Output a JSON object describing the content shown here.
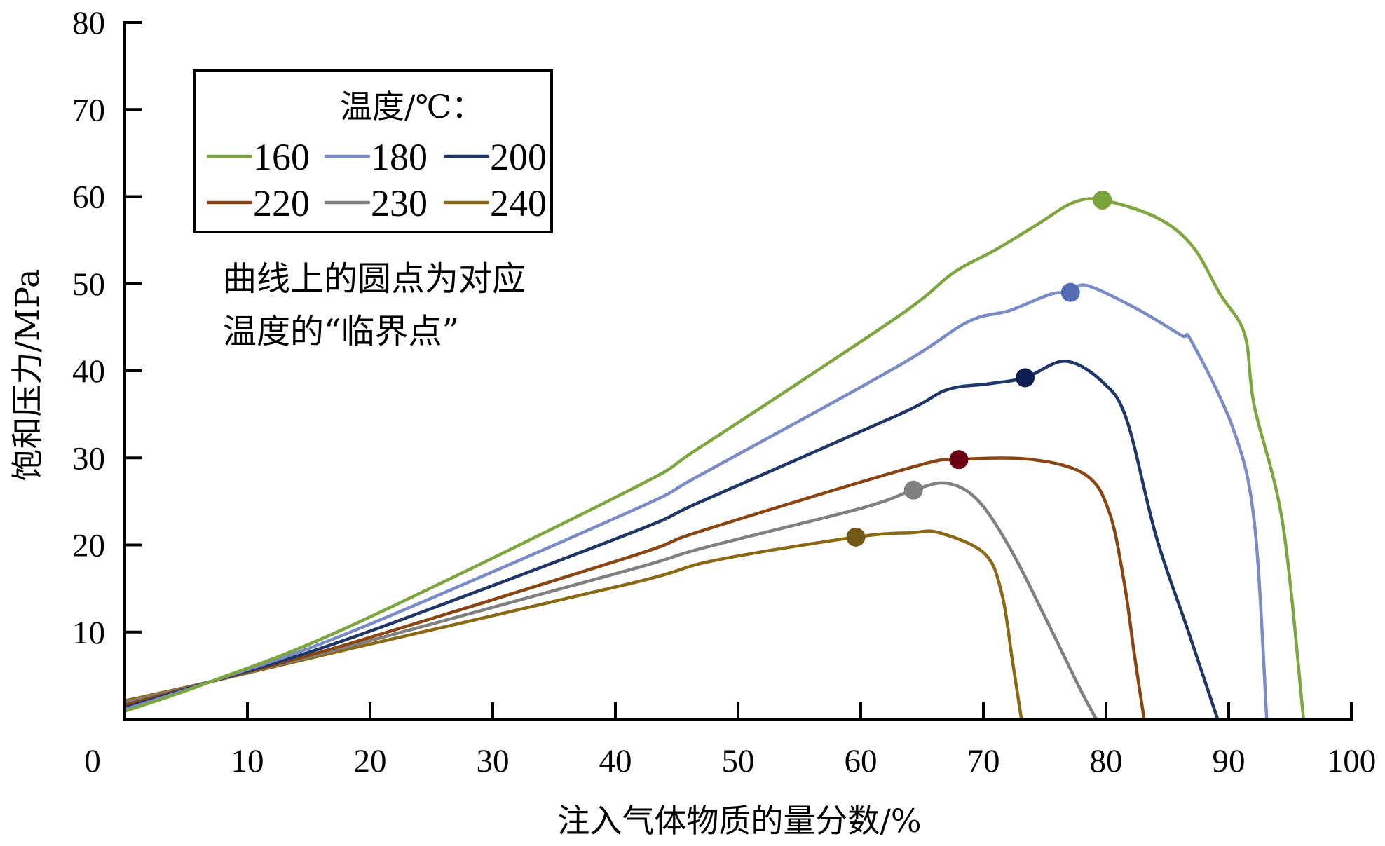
{
  "chart_data": {
    "type": "line",
    "title": "",
    "xlabel": "注入气体物质的量分数/%",
    "ylabel": "饱和压力/MPa",
    "xlim": [
      0,
      100
    ],
    "ylim": [
      0,
      80
    ],
    "xticks": [
      0,
      10,
      20,
      30,
      40,
      50,
      60,
      70,
      80,
      90,
      100
    ],
    "yticks": [
      10,
      20,
      30,
      40,
      50,
      60,
      70,
      80
    ],
    "xtick_labels": [
      "0",
      "10",
      "20",
      "30",
      "40",
      "50",
      "60",
      "70",
      "80",
      "90",
      "100"
    ],
    "ytick_labels": [
      "10",
      "20",
      "30",
      "40",
      "50",
      "60",
      "70",
      "80"
    ],
    "grid": false,
    "legend": {
      "title": "温度/℃：",
      "placement": "top-left",
      "columns": 3
    },
    "annotation": {
      "lines": [
        "曲线上的圆点为对应",
        "温度的“临界点”"
      ]
    },
    "series": [
      {
        "name": "160",
        "color": "#7da63f",
        "marker_color": "#7ba33c",
        "points": [
          [
            0,
            0.9
          ],
          [
            7,
            4.3
          ],
          [
            18.4,
            10.7
          ],
          [
            41.3,
            26.4
          ],
          [
            47,
            31.3
          ],
          [
            63,
            46.2
          ],
          [
            67.5,
            51.2
          ],
          [
            71,
            53.9
          ],
          [
            74.4,
            56.8
          ],
          [
            77.3,
            59.3
          ],
          [
            79.7,
            59.6
          ],
          [
            84.1,
            57.6
          ],
          [
            87,
            54.4
          ],
          [
            89.3,
            48.8
          ],
          [
            91.3,
            44.2
          ],
          [
            92.1,
            35.9
          ],
          [
            94.4,
            22.5
          ],
          [
            96.1,
            0
          ]
        ],
        "critical_point": [
          79.7,
          59.6
        ]
      },
      {
        "name": "180",
        "color": "#7a8cc8",
        "marker_color": "#536cb5",
        "points": [
          [
            0,
            1.1
          ],
          [
            7,
            4.3
          ],
          [
            18.4,
            10.0
          ],
          [
            41.3,
            23.9
          ],
          [
            47,
            28.1
          ],
          [
            63,
            40.5
          ],
          [
            68.7,
            45.6
          ],
          [
            72.1,
            46.9
          ],
          [
            75.5,
            48.8
          ],
          [
            77.1,
            49.0
          ],
          [
            78.4,
            49.8
          ],
          [
            82.4,
            47.2
          ],
          [
            86.1,
            44.1
          ],
          [
            87,
            43.3
          ],
          [
            90.4,
            33.2
          ],
          [
            92.1,
            22.5
          ],
          [
            93.1,
            0
          ]
        ],
        "critical_point": [
          77.1,
          49.0
        ]
      },
      {
        "name": "200",
        "color": "#1f3668",
        "marker_color": "#0f1e52",
        "points": [
          [
            0,
            1.3
          ],
          [
            7,
            4.3
          ],
          [
            18.4,
            9.3
          ],
          [
            41.3,
            21.4
          ],
          [
            47,
            25.0
          ],
          [
            63,
            34.9
          ],
          [
            67,
            37.8
          ],
          [
            70.4,
            38.5
          ],
          [
            73.4,
            39.2
          ],
          [
            76.7,
            41.1
          ],
          [
            79.8,
            38.6
          ],
          [
            81.7,
            34.3
          ],
          [
            84.1,
            20.9
          ],
          [
            86.7,
            10.1
          ],
          [
            89.1,
            0
          ]
        ],
        "critical_point": [
          73.4,
          39.2
        ]
      },
      {
        "name": "220",
        "color": "#8b4513",
        "marker_color": "#6b0012",
        "points": [
          [
            0,
            1.6
          ],
          [
            7,
            4.3
          ],
          [
            18.4,
            8.7
          ],
          [
            41.3,
            18.7
          ],
          [
            47,
            21.6
          ],
          [
            64.1,
            28.9
          ],
          [
            68,
            29.8
          ],
          [
            74,
            29.8
          ],
          [
            78.4,
            28.0
          ],
          [
            80.3,
            23.6
          ],
          [
            81.5,
            15.5
          ],
          [
            82.3,
            7.5
          ],
          [
            83.1,
            0
          ]
        ],
        "critical_point": [
          68.0,
          29.8
        ]
      },
      {
        "name": "230",
        "color": "#808080",
        "marker_color": "#808080",
        "points": [
          [
            0,
            1.9
          ],
          [
            7,
            4.3
          ],
          [
            18.4,
            8.4
          ],
          [
            41.3,
            17.2
          ],
          [
            47,
            19.6
          ],
          [
            60,
            24.2
          ],
          [
            64.3,
            26.3
          ],
          [
            67,
            27.1
          ],
          [
            69.5,
            25.2
          ],
          [
            72.1,
            19.8
          ],
          [
            75.0,
            11.8
          ],
          [
            77.8,
            3.7
          ],
          [
            79.2,
            0
          ]
        ],
        "critical_point": [
          64.3,
          26.3
        ]
      },
      {
        "name": "240",
        "color": "#8b6914",
        "marker_color": "#735a14",
        "points": [
          [
            0,
            2.1
          ],
          [
            7,
            4.3
          ],
          [
            18.4,
            8.1
          ],
          [
            41.3,
            15.6
          ],
          [
            48,
            18.2
          ],
          [
            59.6,
            20.9
          ],
          [
            64.1,
            21.4
          ],
          [
            66.4,
            21.4
          ],
          [
            70.1,
            19.0
          ],
          [
            71.5,
            14.4
          ],
          [
            72.4,
            6.4
          ],
          [
            73.1,
            0
          ]
        ],
        "critical_point": [
          59.6,
          20.9
        ]
      }
    ]
  }
}
